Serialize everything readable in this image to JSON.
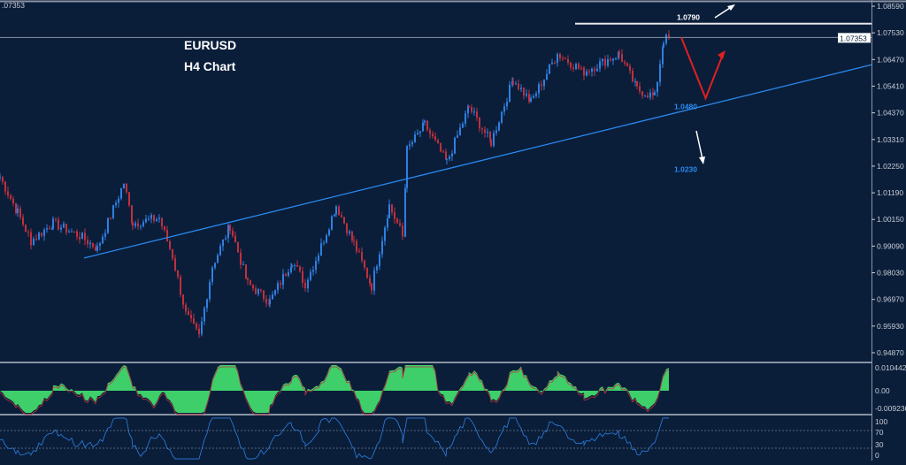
{
  "header": {
    "price_readout": ".07353"
  },
  "chart_data": {
    "type": "candlestick",
    "title": "EURUSD",
    "subtitle": "H4 Chart",
    "ylim": [
      0.9487,
      1.0859
    ],
    "y_ticks": [
      "1.08590",
      "1.07530",
      "1.06470",
      "1.05410",
      "1.04370",
      "1.03310",
      "1.02250",
      "1.01190",
      "1.00150",
      "0.99090",
      "0.98030",
      "0.96970",
      "0.95930",
      "0.94870"
    ],
    "current_price": "1.07353",
    "x_bars": [
      0,
      4,
      7,
      12,
      18,
      22,
      28,
      30,
      36,
      39,
      42,
      45,
      48,
      52,
      56,
      61,
      66,
      69,
      72,
      76,
      80,
      84,
      88,
      91,
      92,
      96,
      101,
      106,
      111,
      116,
      120,
      126,
      132,
      140,
      144,
      148,
      150,
      151.5
    ],
    "closes": [
      1.0183,
      1.0043,
      0.993,
      1.0,
      0.995,
      0.99,
      1.016,
      1.0,
      1.002,
      0.987,
      0.964,
      0.955,
      0.983,
      0.999,
      0.976,
      0.969,
      0.985,
      0.976,
      0.988,
      1.007,
      0.992,
      0.975,
      1.007,
      0.995,
      1.029,
      1.039,
      1.024,
      1.046,
      1.032,
      1.057,
      1.048,
      1.067,
      1.06,
      1.067,
      1.053,
      1.05,
      1.0726,
      1.0735
    ],
    "trendline": {
      "from": [
        19,
        0.9862
      ],
      "to": [
        197,
        1.0627
      ]
    },
    "resistance": {
      "value": 1.079,
      "label": "1.0790"
    },
    "annotations": [
      {
        "label": "1.0480",
        "value": 1.048
      },
      {
        "label": "1.0230",
        "value": 1.023
      }
    ],
    "projection": {
      "points": [
        [
          154,
          1.0735
        ],
        [
          159.5,
          1.0495
        ],
        [
          163.5,
          1.0672
        ]
      ]
    },
    "oscillator": {
      "ticks": [
        "0.010442",
        "0.00",
        "-0.009236"
      ]
    },
    "rsi": {
      "ticks": [
        "100",
        "70",
        "30",
        "0"
      ]
    }
  },
  "colors": {
    "bg": "#0a1e3a",
    "up": "#2f7fe0",
    "down": "#c0303c",
    "trend": "#2a8af0",
    "osc": "#3ecf6a",
    "arrow": "#e02020"
  }
}
